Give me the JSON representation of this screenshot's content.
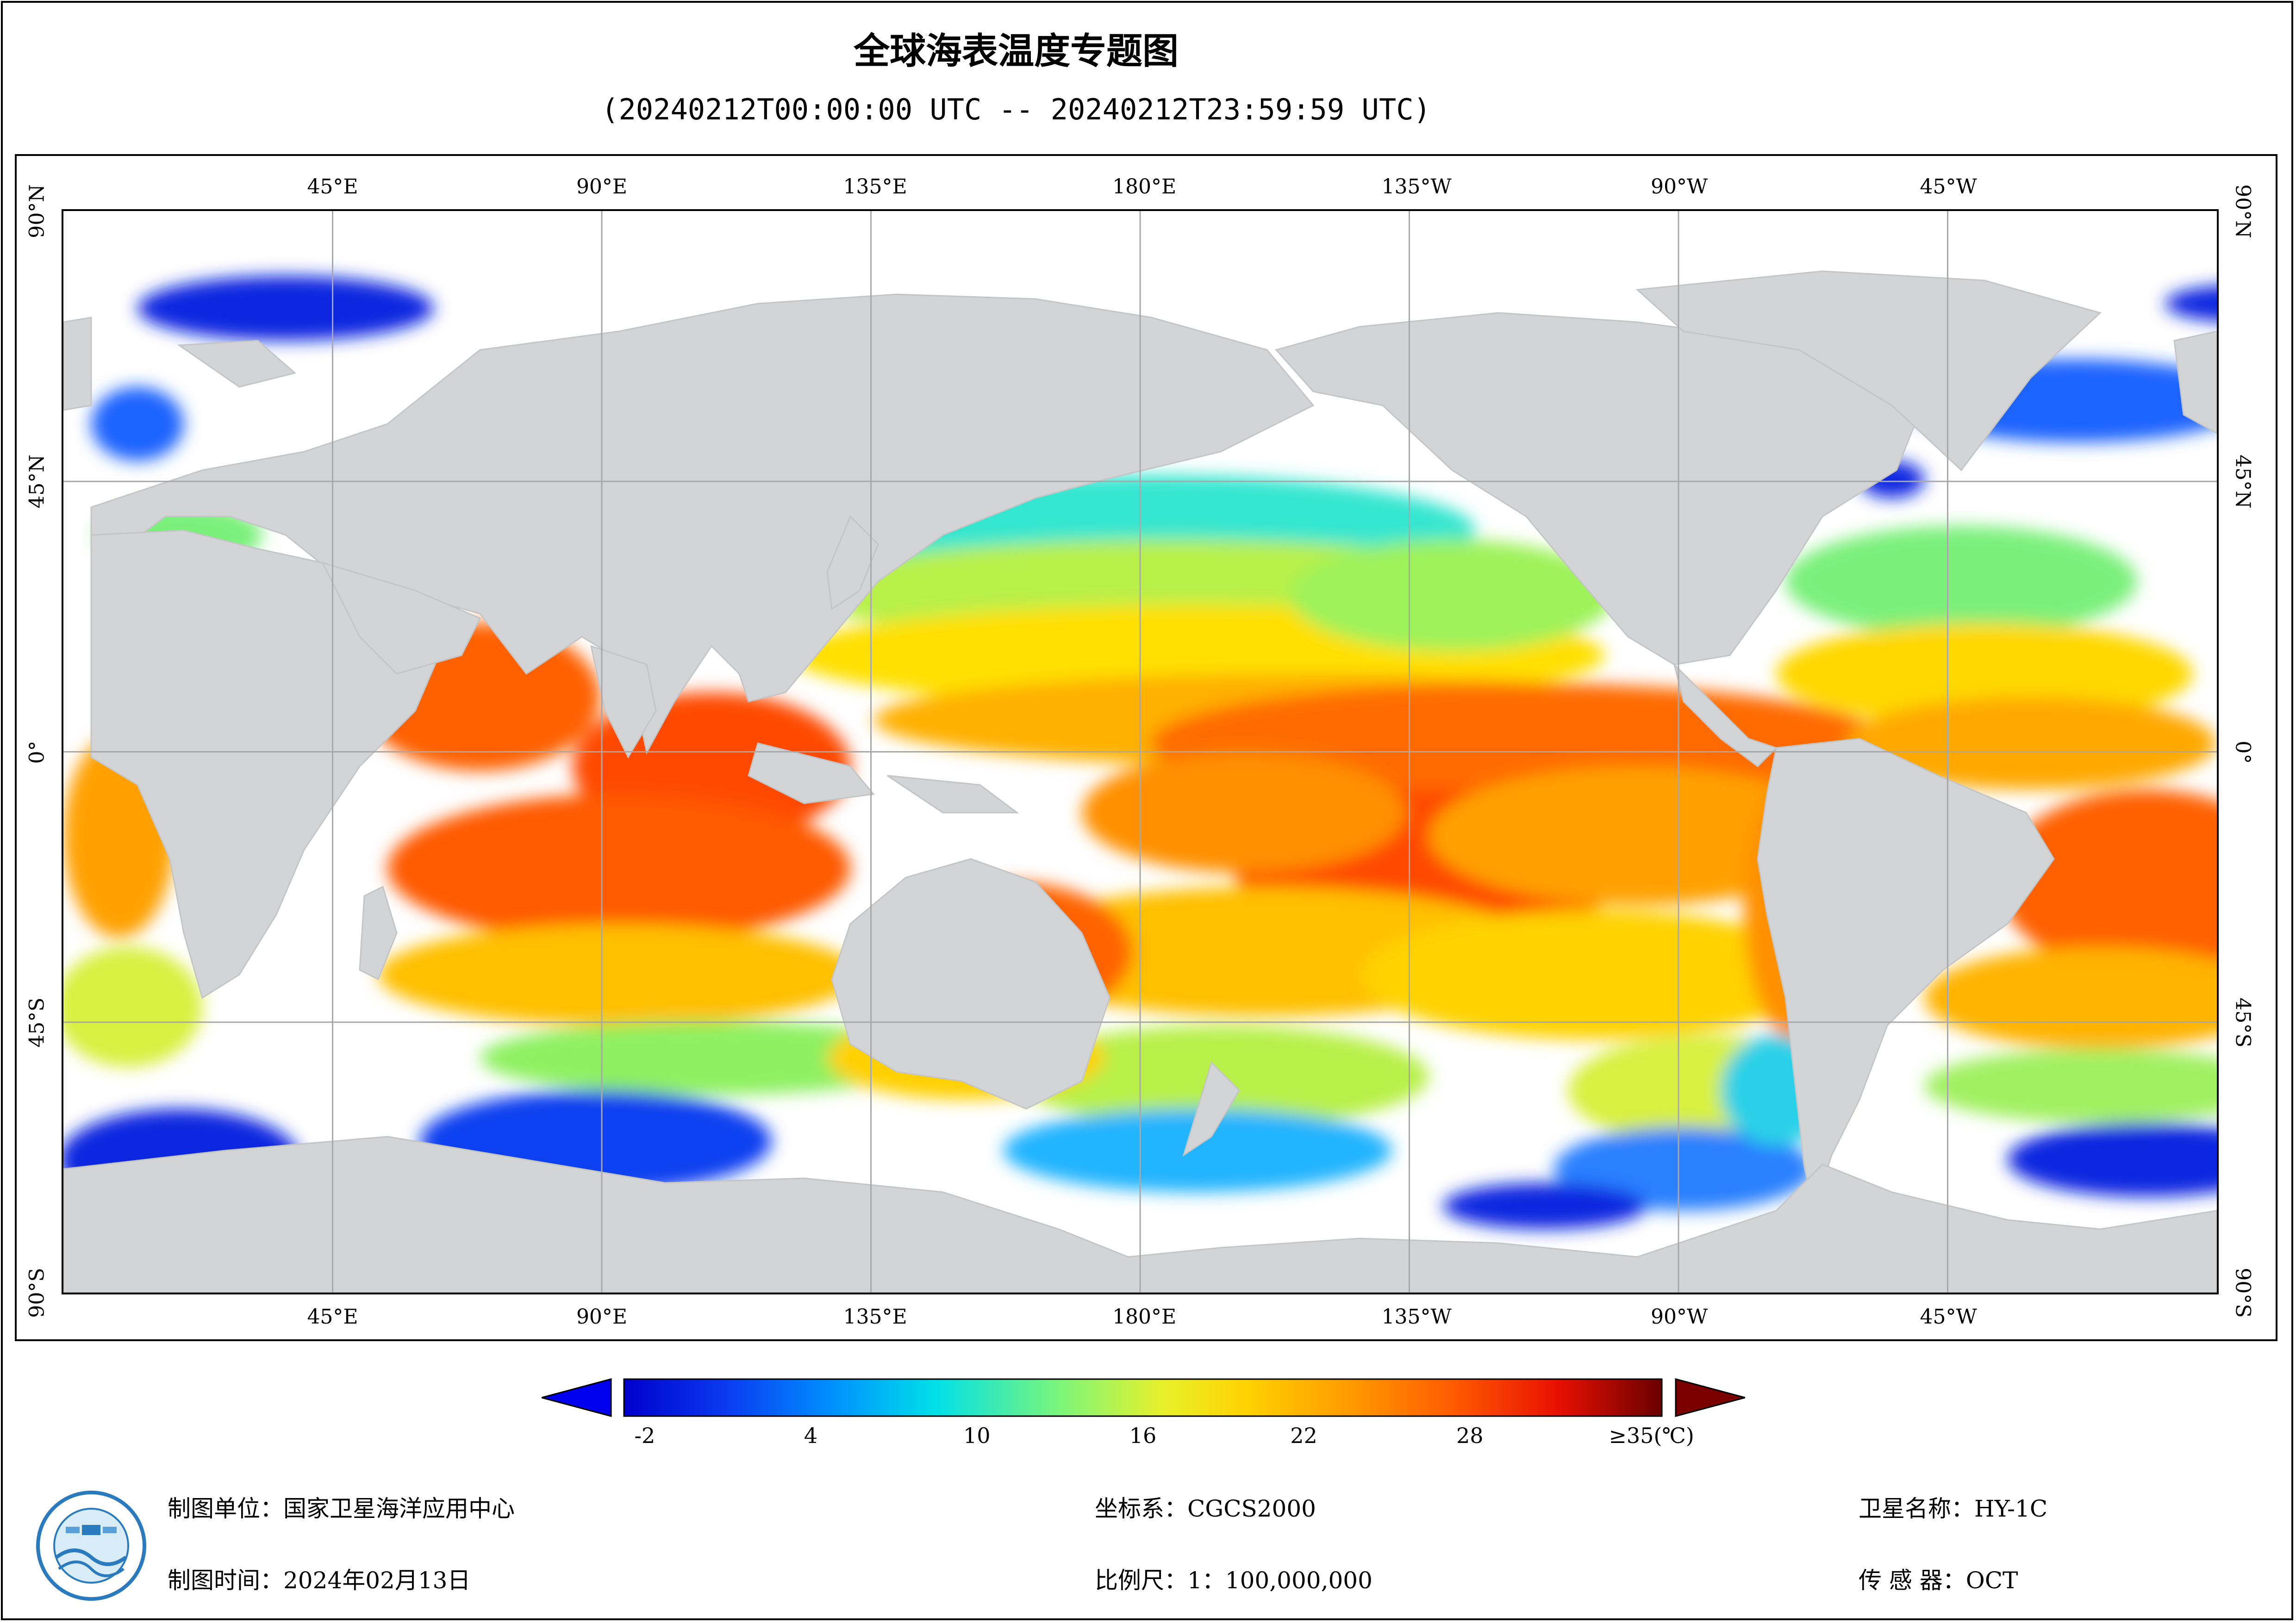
{
  "header": {
    "title": "全球海表温度专题图",
    "subtitle": "(20240212T00:00:00 UTC -- 20240212T23:59:59 UTC)"
  },
  "map": {
    "lon_labels": [
      "45°E",
      "90°E",
      "135°E",
      "180°E",
      "135°W",
      "90°W",
      "45°W"
    ],
    "lat_labels": [
      "90°N",
      "45°N",
      "0°",
      "45°S",
      "90°S"
    ],
    "land_color": "#d3d4d5",
    "ocean_nodata_color": "#ffffff",
    "grid_color": "#a0a0a0"
  },
  "colorbar": {
    "ticks": [
      "-2",
      "4",
      "10",
      "16",
      "22",
      "28",
      "≥35(℃)"
    ],
    "colors": [
      "#0000cc",
      "#0a3cf0",
      "#0090ff",
      "#00e0e8",
      "#7cf57a",
      "#e8f02a",
      "#ffd200",
      "#ff9a00",
      "#ff5a00",
      "#e81000",
      "#6a0000"
    ],
    "min_arrow_color": "#0000ee",
    "max_arrow_color": "#7a0000"
  },
  "footer": {
    "unit": "制图单位：国家卫星海洋应用中心",
    "time": "制图时间：2024年02月13日",
    "crs": "坐标系：CGCS2000",
    "scale": "比例尺：1：100,000,000",
    "satellite": "卫星名称：HY-1C",
    "sensor": "传 感 器：OCT"
  }
}
